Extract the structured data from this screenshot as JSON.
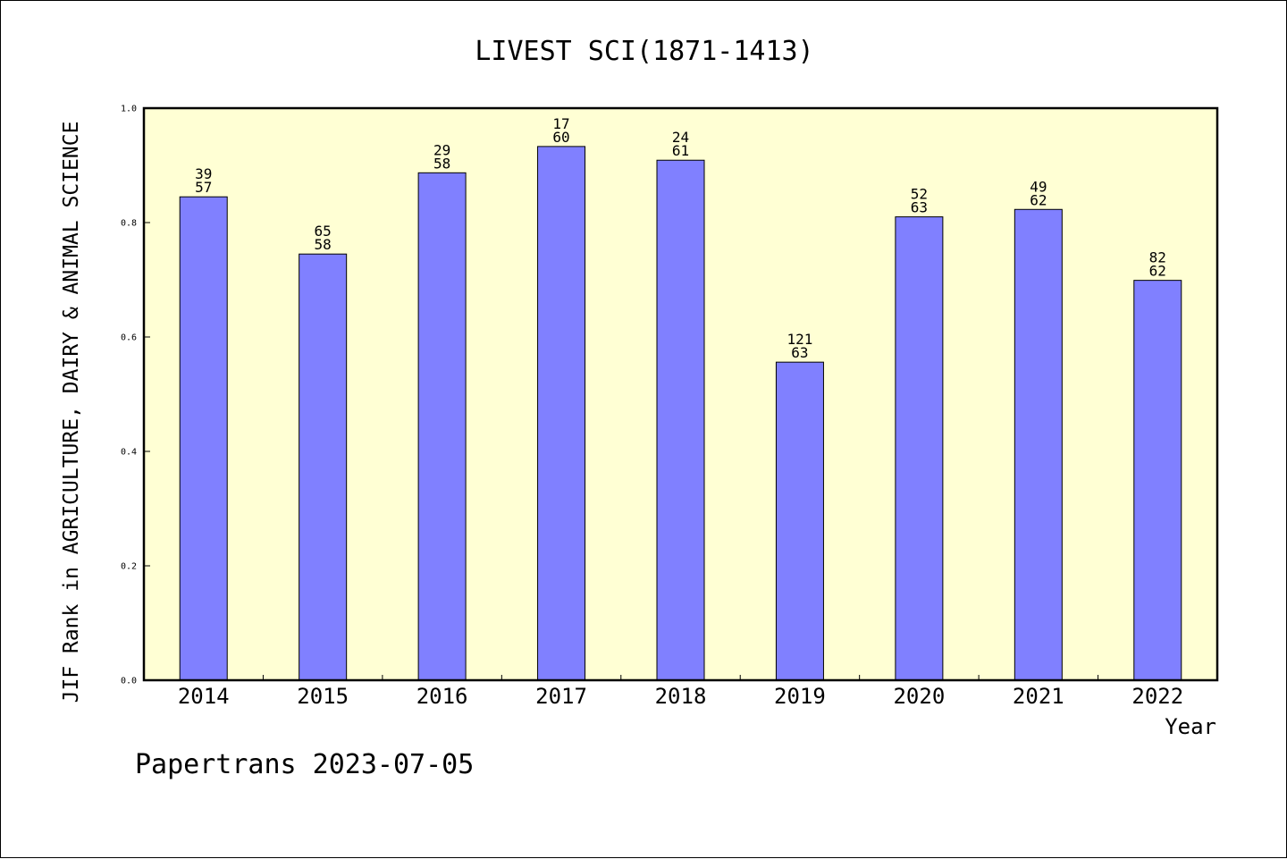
{
  "chart_data": {
    "type": "bar",
    "title": "LIVEST SCI(1871-1413)",
    "xlabel": "Year",
    "ylabel": "JIF Rank in AGRICULTURE, DAIRY & ANIMAL SCIENCE",
    "ylim": [
      0,
      1.0
    ],
    "yticks": [
      "0.0",
      "0.2",
      "0.4",
      "0.6",
      "0.8",
      "1.0"
    ],
    "grid": false,
    "categories": [
      "2014",
      "2015",
      "2016",
      "2017",
      "2018",
      "2019",
      "2020",
      "2021",
      "2022"
    ],
    "values": [
      0.845,
      0.745,
      0.887,
      0.933,
      0.909,
      0.556,
      0.81,
      0.823,
      0.699
    ],
    "ranks": [
      "39",
      "65",
      "29",
      "17",
      "24",
      "121",
      "52",
      "49",
      "82"
    ],
    "totals": [
      "57",
      "58",
      "58",
      "60",
      "61",
      "63",
      "63",
      "62",
      "62"
    ],
    "colors": {
      "plot_bg": "#ffffd4",
      "bar": "#8080ff"
    }
  },
  "footer": "Papertrans 2023-07-05"
}
